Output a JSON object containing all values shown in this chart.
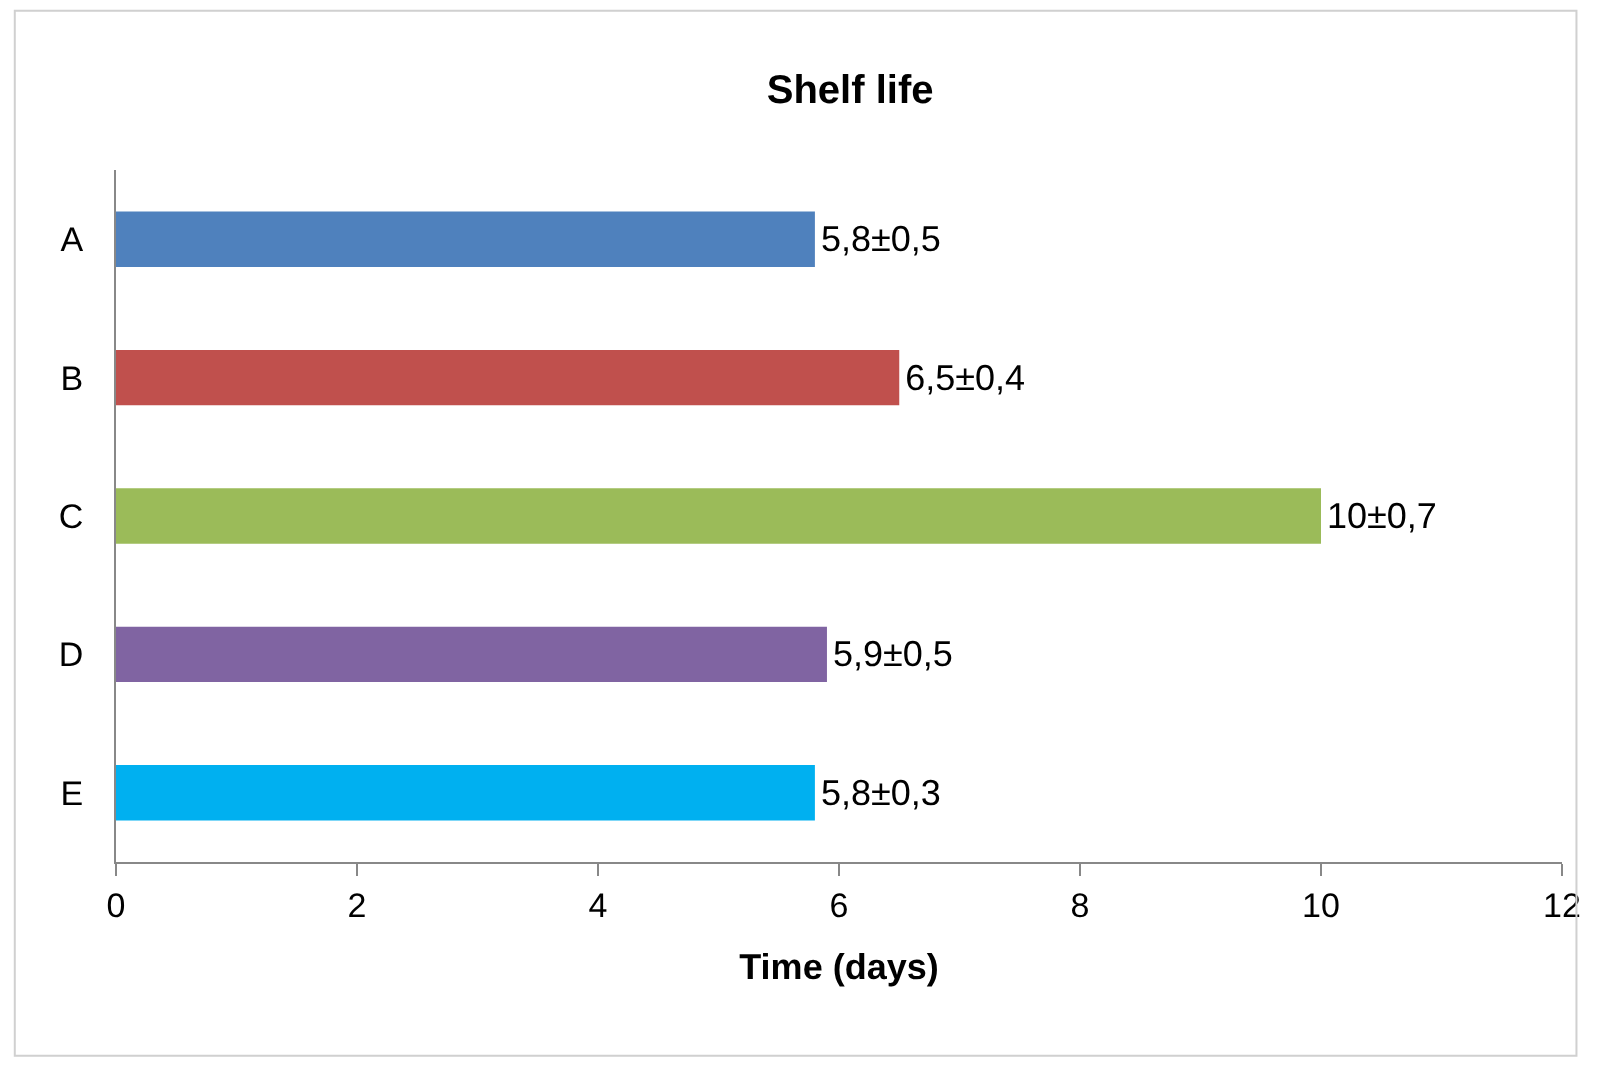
{
  "chart_data": {
    "type": "bar",
    "orientation": "horizontal",
    "title": "Shelf life",
    "xlabel": "Time (days)",
    "categories": [
      "A",
      "B",
      "C",
      "D",
      "E"
    ],
    "values": [
      5.8,
      6.5,
      10,
      5.9,
      5.8
    ],
    "colors": [
      "#4f81bd",
      "#c0504d",
      "#9bbb59",
      "#8064a2",
      "#00b0f0"
    ],
    "value_labels": [
      "5,8±0,5",
      "6,5±0,4",
      "10±0,7",
      "5,9±0,5",
      "5,8±0,3"
    ],
    "xlim": [
      0,
      12
    ],
    "xticks": [
      0,
      2,
      4,
      6,
      8,
      10,
      12
    ]
  }
}
